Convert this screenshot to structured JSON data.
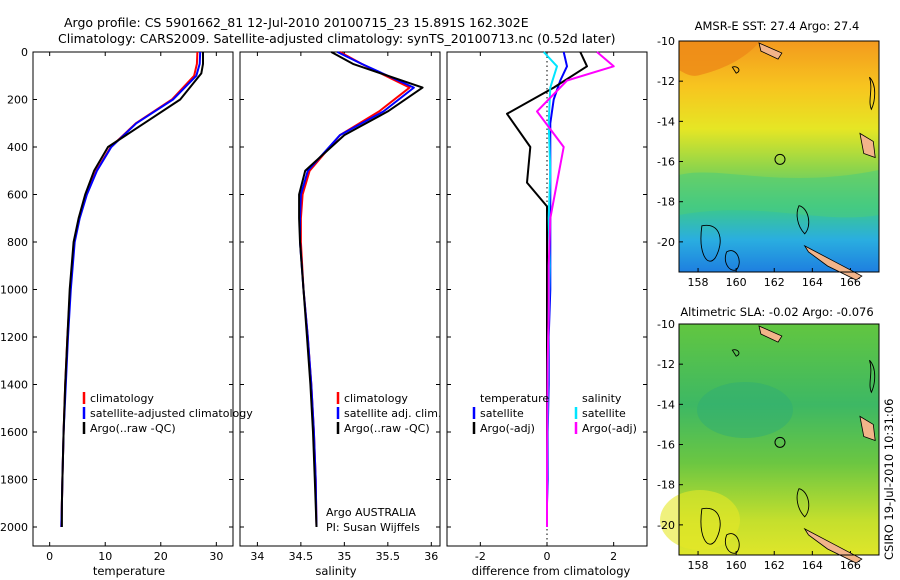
{
  "title_line1": "Argo profile: CS 5901662_81 12-Jul-2010 20100715_23 15.891S 162.302E",
  "title_line2": "Climatology: CARS2009. Satellite-adjusted climatology: synTS_20100713.nc (0.52d later)",
  "credit": "CSIRO 19-Jul-2010 10:31:06",
  "argo_note_line1": "Argo AUSTRALIA",
  "argo_note_line2": "PI: Susan Wijffels",
  "colors": {
    "climatology": "#ff0000",
    "satellite": "#0000ff",
    "argo": "#000000",
    "salinity_satellite": "#00e5ff",
    "salinity_argo": "#ff00ff",
    "coast": "#000000",
    "land": "#f2b48a"
  },
  "chart_data": [
    {
      "type": "line",
      "name": "temperature-profile",
      "xlabel": "temperature",
      "xlim": [
        -3,
        33
      ],
      "ylim": [
        2080,
        0
      ],
      "xticks": [
        0,
        10,
        20,
        30
      ],
      "yticks": [
        0,
        200,
        400,
        600,
        800,
        1000,
        1200,
        1400,
        1600,
        1800,
        2000
      ],
      "legend": [
        "climatology",
        "satellite-adjusted climatology",
        "Argo(..raw -QC)"
      ],
      "series": [
        {
          "name": "climatology",
          "x": [
            26.6,
            26.5,
            26.0,
            22.0,
            15.5,
            11.0,
            8.4,
            6.6,
            5.3,
            4.4,
            3.7,
            3.2,
            2.8,
            2.5,
            2.3,
            2.2,
            2.1
          ],
          "y": [
            0,
            50,
            100,
            200,
            300,
            400,
            500,
            600,
            700,
            800,
            1000,
            1200,
            1400,
            1600,
            1800,
            1900,
            2000
          ]
        },
        {
          "name": "satellite-adjusted climatology",
          "x": [
            27.1,
            27.0,
            26.4,
            22.2,
            15.6,
            11.1,
            8.5,
            6.7,
            5.4,
            4.5,
            3.8,
            3.3,
            2.9,
            2.5,
            2.3,
            2.2,
            2.1
          ],
          "y": [
            0,
            50,
            100,
            200,
            300,
            400,
            500,
            600,
            700,
            800,
            1000,
            1200,
            1400,
            1600,
            1800,
            1900,
            2000
          ]
        },
        {
          "name": "Argo(..raw -QC)",
          "x": [
            27.6,
            27.6,
            27.3,
            23.5,
            17.0,
            10.5,
            8.0,
            6.4,
            5.2,
            4.3,
            3.6,
            3.2,
            2.8,
            2.5,
            2.3,
            2.2,
            2.2
          ],
          "y": [
            0,
            50,
            90,
            200,
            300,
            400,
            500,
            600,
            700,
            800,
            1000,
            1200,
            1400,
            1600,
            1800,
            1900,
            2000
          ]
        }
      ]
    },
    {
      "type": "line",
      "name": "salinity-profile",
      "xlabel": "salinity",
      "xlim": [
        33.8,
        36.1
      ],
      "ylim": [
        2080,
        0
      ],
      "xticks": [
        34,
        34.5,
        35,
        35.5,
        36
      ],
      "legend": [
        "climatology",
        "satellite adj. clim.",
        "Argo(..raw -QC)"
      ],
      "series": [
        {
          "name": "climatology",
          "x": [
            34.95,
            35.2,
            35.75,
            35.4,
            34.95,
            34.6,
            34.52,
            34.5,
            34.5,
            34.53,
            34.58,
            34.62,
            34.65,
            34.67,
            34.68
          ],
          "y": [
            0,
            50,
            150,
            250,
            350,
            500,
            600,
            700,
            800,
            1000,
            1200,
            1400,
            1600,
            1800,
            2000
          ]
        },
        {
          "name": "satellite adj. clim.",
          "x": [
            34.92,
            35.2,
            35.8,
            35.45,
            34.95,
            34.58,
            34.5,
            34.49,
            34.49,
            34.53,
            34.58,
            34.62,
            34.65,
            34.67,
            34.68
          ],
          "y": [
            0,
            50,
            150,
            250,
            350,
            500,
            600,
            700,
            800,
            1000,
            1200,
            1400,
            1600,
            1800,
            2000
          ]
        },
        {
          "name": "Argo(..raw -QC)",
          "x": [
            34.85,
            35.1,
            35.9,
            35.5,
            35.0,
            34.55,
            34.48,
            34.48,
            34.49,
            34.53,
            34.57,
            34.61,
            34.64,
            34.66,
            34.68
          ],
          "y": [
            0,
            50,
            150,
            250,
            350,
            500,
            600,
            700,
            800,
            1000,
            1200,
            1400,
            1600,
            1800,
            2000
          ]
        }
      ]
    },
    {
      "type": "line",
      "name": "difference-profile",
      "xlabel": "difference from climatology",
      "xlim": [
        -3,
        3
      ],
      "ylim": [
        2080,
        0
      ],
      "xticks": [
        -2,
        0,
        2
      ],
      "legend_left_title": "temperature",
      "legend_right_title": "salinity",
      "legend_left": [
        "satellite",
        "Argo(-adj)"
      ],
      "legend_right": [
        "satellite",
        "Argo(-adj)"
      ],
      "series": [
        {
          "name": "temperature satellite",
          "x": [
            0.5,
            0.6,
            0.4,
            0.2,
            0.1,
            0.1,
            0.1,
            0.1,
            0.1,
            0.05,
            0.05,
            0.02,
            0.02,
            0.0,
            0.0
          ],
          "y": [
            0,
            60,
            120,
            200,
            300,
            400,
            600,
            800,
            1000,
            1200,
            1400,
            1600,
            1800,
            1900,
            2000
          ]
        },
        {
          "name": "temperature Argo(-adj)",
          "x": [
            1.0,
            1.2,
            0.2,
            -1.2,
            -0.5,
            -0.6,
            0.0,
            0.0,
            0.0,
            0.0,
            0.0,
            0.0,
            0.0,
            0.0
          ],
          "y": [
            0,
            60,
            150,
            260,
            400,
            550,
            650,
            800,
            1000,
            1200,
            1400,
            1600,
            1800,
            2000
          ]
        },
        {
          "name": "salinity satellite",
          "x": [
            -0.1,
            0.3,
            0.1,
            0.05,
            0.1,
            0.05,
            0.08,
            0.05,
            0.03,
            0.02,
            0.01,
            0.0,
            0.0
          ],
          "y": [
            0,
            60,
            150,
            300,
            500,
            700,
            900,
            1100,
            1300,
            1500,
            1700,
            1900,
            2000
          ]
        },
        {
          "name": "salinity Argo(-adj)",
          "x": [
            1.5,
            2.0,
            0.6,
            -0.3,
            0.5,
            0.3,
            0.1,
            0.05,
            0.05,
            0.02,
            0.01,
            0.0,
            0.0
          ],
          "y": [
            0,
            60,
            120,
            250,
            400,
            550,
            700,
            900,
            1100,
            1300,
            1500,
            1800,
            2000
          ]
        }
      ]
    },
    {
      "type": "heatmap",
      "name": "sst-map",
      "title": "AMSR-E SST: 27.4 Argo: 27.4",
      "xticks": [
        158,
        160,
        162,
        164,
        166
      ],
      "yticks": [
        -10,
        -12,
        -14,
        -16,
        -18,
        -20
      ],
      "xlim": [
        157,
        167.5
      ],
      "ylim": [
        -21.5,
        -10
      ],
      "argo_position": [
        162.302,
        -15.891
      ]
    },
    {
      "type": "heatmap",
      "name": "sla-map",
      "title": "Altimetric SLA: -0.02 Argo: -0.076",
      "xticks": [
        158,
        160,
        162,
        164,
        166
      ],
      "yticks": [
        -10,
        -12,
        -14,
        -16,
        -18,
        -20
      ],
      "xlim": [
        157,
        167.5
      ],
      "ylim": [
        -21.5,
        -10
      ],
      "argo_position": [
        162.302,
        -15.891
      ]
    }
  ]
}
